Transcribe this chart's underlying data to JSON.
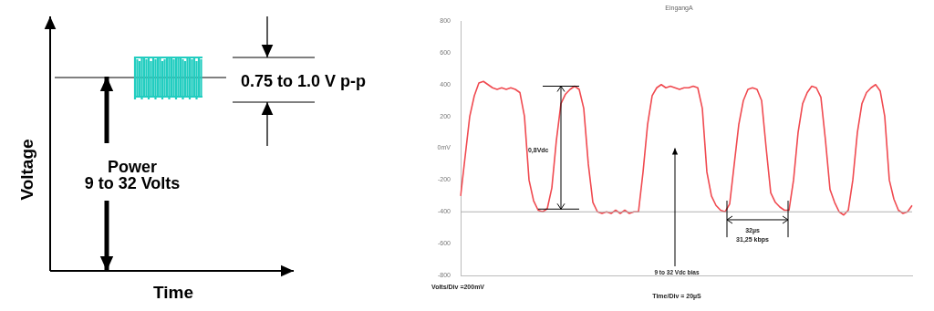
{
  "chart_data": [
    {
      "type": "other",
      "xlabel": "Time",
      "ylabel": "Voltage",
      "annotations": [
        "Power",
        "9 to 32 Volts",
        "0.75 to 1.0 V p-p"
      ]
    },
    {
      "type": "line",
      "title": "EingangA",
      "tick_labels": "y",
      "marker": "none",
      "legend": false,
      "categories": [
        null,
        null,
        null,
        null,
        null,
        null,
        null,
        null,
        null,
        null,
        null,
        null,
        null,
        null,
        null,
        null,
        null,
        null,
        null,
        null,
        null,
        null,
        null,
        null,
        null,
        null,
        null,
        null,
        null,
        null,
        null,
        null,
        null,
        null,
        null,
        null,
        null,
        null,
        null,
        null,
        null,
        null,
        null,
        null,
        null,
        null,
        null,
        null,
        null,
        null,
        null,
        null,
        null,
        null,
        null,
        null,
        null,
        null,
        null,
        null,
        null,
        null,
        null,
        null,
        null,
        null,
        null,
        null,
        null,
        null,
        null,
        null,
        null,
        null,
        null,
        null,
        null,
        null,
        null,
        null,
        null,
        null,
        null,
        null,
        null,
        null,
        null,
        null,
        null,
        null,
        null,
        null,
        null,
        null,
        null,
        null,
        null,
        null,
        null,
        null
      ],
      "series": [
        {
          "color": "#f04a50",
          "values": [
            -300,
            -50,
            200,
            330,
            410,
            420,
            400,
            380,
            370,
            380,
            370,
            380,
            370,
            350,
            200,
            -200,
            -330,
            -390,
            -400,
            -380,
            -250,
            50,
            280,
            340,
            370,
            390,
            370,
            250,
            -100,
            -340,
            -400,
            -410,
            -400,
            -410,
            -390,
            -410,
            -390,
            -410,
            -400,
            -400,
            -150,
            150,
            330,
            380,
            400,
            380,
            390,
            380,
            370,
            380,
            380,
            390,
            380,
            250,
            -150,
            -300,
            -360,
            -390,
            -400,
            -350,
            -100,
            150,
            300,
            370,
            380,
            370,
            300,
            0,
            -280,
            -340,
            -370,
            -390,
            -390,
            -200,
            100,
            280,
            350,
            390,
            380,
            320,
            50,
            -260,
            -340,
            -400,
            -420,
            -390,
            -200,
            100,
            280,
            350,
            380,
            400,
            360,
            200,
            -200,
            -320,
            -390,
            -410,
            -400,
            -360
          ]
        }
      ],
      "ylim": [
        -800,
        800
      ],
      "yticks": [
        -800,
        -600,
        -400,
        -200,
        {
          "value": 0,
          "label": "0mV"
        },
        200,
        400,
        600,
        800
      ],
      "ref_lines": [
        {
          "axis": "y",
          "value": -400,
          "color": "#b0b0b0"
        }
      ],
      "annotations": [
        "0,8Vdc",
        "9 to 32 Vdc bias",
        "32µs",
        "31,25 kbps",
        "Volts/Div =200mV",
        "Time/Div = 20µS"
      ]
    }
  ]
}
